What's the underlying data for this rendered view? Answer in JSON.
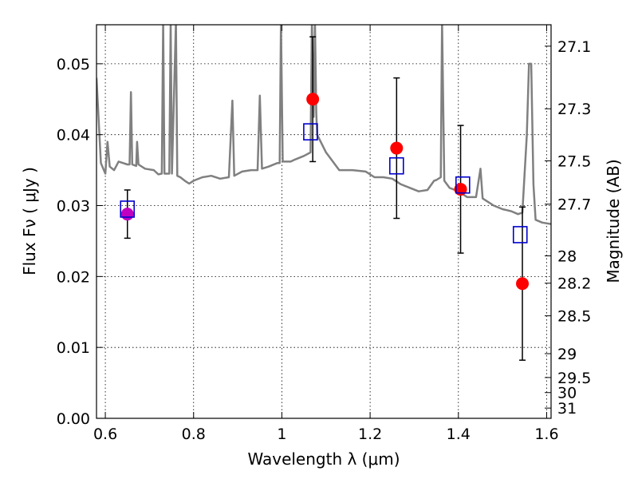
{
  "chart_data": {
    "type": "scatter",
    "xlabel": "Wavelength  λ (μm)",
    "ylabel": "Flux  Fν  ( μJy )",
    "y2label": "Magnitude (AB)",
    "xlim": [
      0.58,
      1.61
    ],
    "ylim": [
      0.0,
      0.0555
    ],
    "x_ticks": [
      0.6,
      0.8,
      1.0,
      1.2,
      1.4,
      1.6
    ],
    "x_tick_labels": [
      "0.6",
      "0.8",
      "1",
      "1.2",
      "1.4",
      "1.6"
    ],
    "y_ticks": [
      0.0,
      0.01,
      0.02,
      0.03,
      0.04,
      0.05
    ],
    "y_tick_labels": [
      "0.00",
      "0.01",
      "0.02",
      "0.03",
      "0.04",
      "0.05"
    ],
    "y2_ticks": [
      "27.1",
      "27.3",
      "27.5",
      "27.7",
      "28",
      "28.2",
      "28.5",
      "29",
      "29.5",
      "30",
      "31"
    ],
    "grid": true,
    "colors": {
      "spectrum": "#808080",
      "observed": "#ff0000",
      "observed_overlap": "#c000c0",
      "model": "#0000cc",
      "errorbar": "#000000"
    },
    "observed": [
      {
        "x": 0.65,
        "y": 0.0288,
        "yerr_low": 0.0034,
        "yerr_high": 0.0034
      },
      {
        "x": 1.07,
        "y": 0.045,
        "yerr_low": 0.0088,
        "yerr_high": 0.0088
      },
      {
        "x": 1.26,
        "y": 0.0381,
        "yerr_low": 0.0099,
        "yerr_high": 0.0099
      },
      {
        "x": 1.405,
        "y": 0.0323,
        "yerr_low": 0.009,
        "yerr_high": 0.009
      },
      {
        "x": 1.545,
        "y": 0.019,
        "yerr_low": 0.0108,
        "yerr_high": 0.0108
      }
    ],
    "model": [
      {
        "x": 0.65,
        "y": 0.0295
      },
      {
        "x": 1.065,
        "y": 0.0404
      },
      {
        "x": 1.26,
        "y": 0.0356
      },
      {
        "x": 1.41,
        "y": 0.0329
      },
      {
        "x": 1.54,
        "y": 0.0259
      }
    ],
    "spectrum": [
      [
        0.58,
        0.048
      ],
      [
        0.59,
        0.036
      ],
      [
        0.6,
        0.0345
      ],
      [
        0.605,
        0.039
      ],
      [
        0.61,
        0.0355
      ],
      [
        0.62,
        0.035
      ],
      [
        0.63,
        0.0362
      ],
      [
        0.64,
        0.036
      ],
      [
        0.65,
        0.0358
      ],
      [
        0.655,
        0.0358
      ],
      [
        0.658,
        0.046
      ],
      [
        0.661,
        0.0358
      ],
      [
        0.67,
        0.0356
      ],
      [
        0.672,
        0.039
      ],
      [
        0.675,
        0.0358
      ],
      [
        0.69,
        0.0352
      ],
      [
        0.71,
        0.035
      ],
      [
        0.72,
        0.0344
      ],
      [
        0.728,
        0.0345
      ],
      [
        0.731,
        0.056
      ],
      [
        0.734,
        0.0345
      ],
      [
        0.745,
        0.0345
      ],
      [
        0.748,
        0.056
      ],
      [
        0.751,
        0.0345
      ],
      [
        0.76,
        0.056
      ],
      [
        0.763,
        0.0342
      ],
      [
        0.77,
        0.034
      ],
      [
        0.78,
        0.0335
      ],
      [
        0.79,
        0.0331
      ],
      [
        0.8,
        0.0335
      ],
      [
        0.82,
        0.034
      ],
      [
        0.84,
        0.0342
      ],
      [
        0.86,
        0.0338
      ],
      [
        0.88,
        0.034
      ],
      [
        0.888,
        0.0448
      ],
      [
        0.892,
        0.0342
      ],
      [
        0.91,
        0.0348
      ],
      [
        0.93,
        0.035
      ],
      [
        0.945,
        0.035
      ],
      [
        0.95,
        0.0455
      ],
      [
        0.955,
        0.0352
      ],
      [
        0.97,
        0.0355
      ],
      [
        0.99,
        0.036
      ],
      [
        0.995,
        0.036
      ],
      [
        0.998,
        0.056
      ],
      [
        1.002,
        0.0362
      ],
      [
        1.01,
        0.0362
      ],
      [
        1.02,
        0.0362
      ],
      [
        1.03,
        0.0365
      ],
      [
        1.05,
        0.037
      ],
      [
        1.065,
        0.0375
      ],
      [
        1.068,
        0.056
      ],
      [
        1.072,
        0.0425
      ],
      [
        1.075,
        0.056
      ],
      [
        1.078,
        0.043
      ],
      [
        1.08,
        0.04
      ],
      [
        1.1,
        0.0375
      ],
      [
        1.13,
        0.035
      ],
      [
        1.16,
        0.035
      ],
      [
        1.19,
        0.0348
      ],
      [
        1.21,
        0.034
      ],
      [
        1.23,
        0.034
      ],
      [
        1.25,
        0.0338
      ],
      [
        1.27,
        0.033
      ],
      [
        1.29,
        0.0325
      ],
      [
        1.31,
        0.032
      ],
      [
        1.33,
        0.0322
      ],
      [
        1.345,
        0.0335
      ],
      [
        1.35,
        0.0336
      ],
      [
        1.36,
        0.034
      ],
      [
        1.363,
        0.056
      ],
      [
        1.368,
        0.0335
      ],
      [
        1.38,
        0.0325
      ],
      [
        1.4,
        0.032
      ],
      [
        1.42,
        0.0312
      ],
      [
        1.44,
        0.0312
      ],
      [
        1.45,
        0.0352
      ],
      [
        1.455,
        0.031
      ],
      [
        1.48,
        0.03
      ],
      [
        1.5,
        0.0295
      ],
      [
        1.52,
        0.0292
      ],
      [
        1.535,
        0.0288
      ],
      [
        1.545,
        0.029
      ],
      [
        1.555,
        0.04
      ],
      [
        1.56,
        0.05
      ],
      [
        1.565,
        0.05
      ],
      [
        1.57,
        0.033
      ],
      [
        1.575,
        0.028
      ],
      [
        1.59,
        0.0276
      ],
      [
        1.61,
        0.0274
      ]
    ]
  }
}
